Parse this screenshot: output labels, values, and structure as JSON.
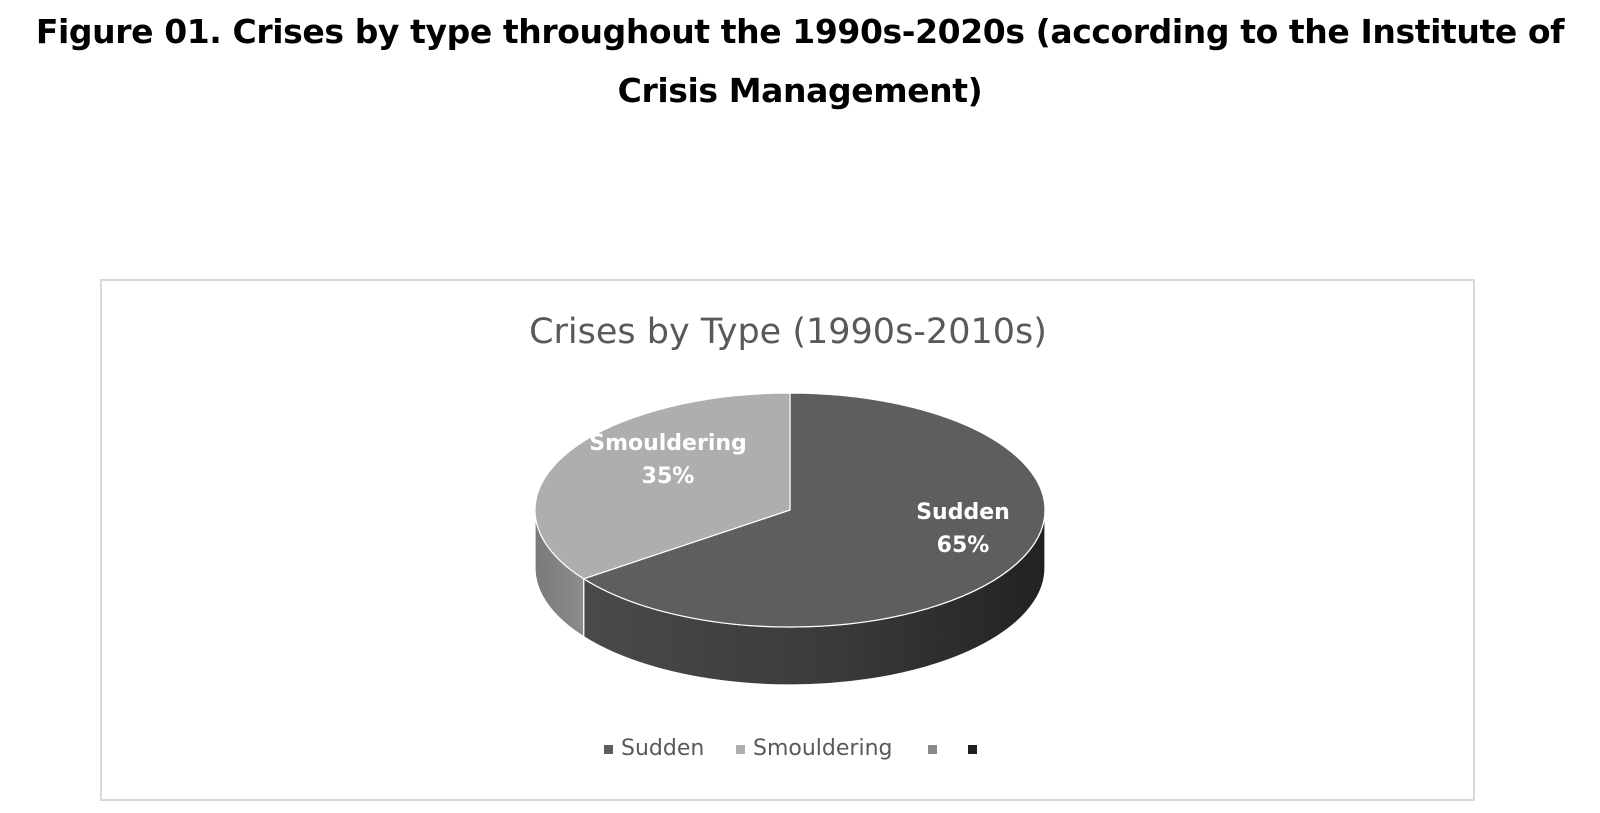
{
  "figure_caption": "Figure 01. Crises by type throughout the 1990s-2020s (according to the Institute of Crisis Management)",
  "chart_data": {
    "type": "pie",
    "style": "3d",
    "title": "Crises by Type (1990s-2010s)",
    "categories": [
      "Sudden",
      "Smouldering",
      "",
      ""
    ],
    "values": [
      65,
      35,
      0,
      0
    ],
    "labels": [
      {
        "category": "Sudden",
        "percent": "65%"
      },
      {
        "category": "Smouldering",
        "percent": "35%"
      }
    ],
    "colors": [
      "#5e5e5e",
      "#aeaeae",
      "#8a8a8a",
      "#1e1e1e"
    ],
    "legend": {
      "position": "bottom",
      "entries": [
        "Sudden",
        "Smouldering",
        "",
        ""
      ]
    }
  }
}
